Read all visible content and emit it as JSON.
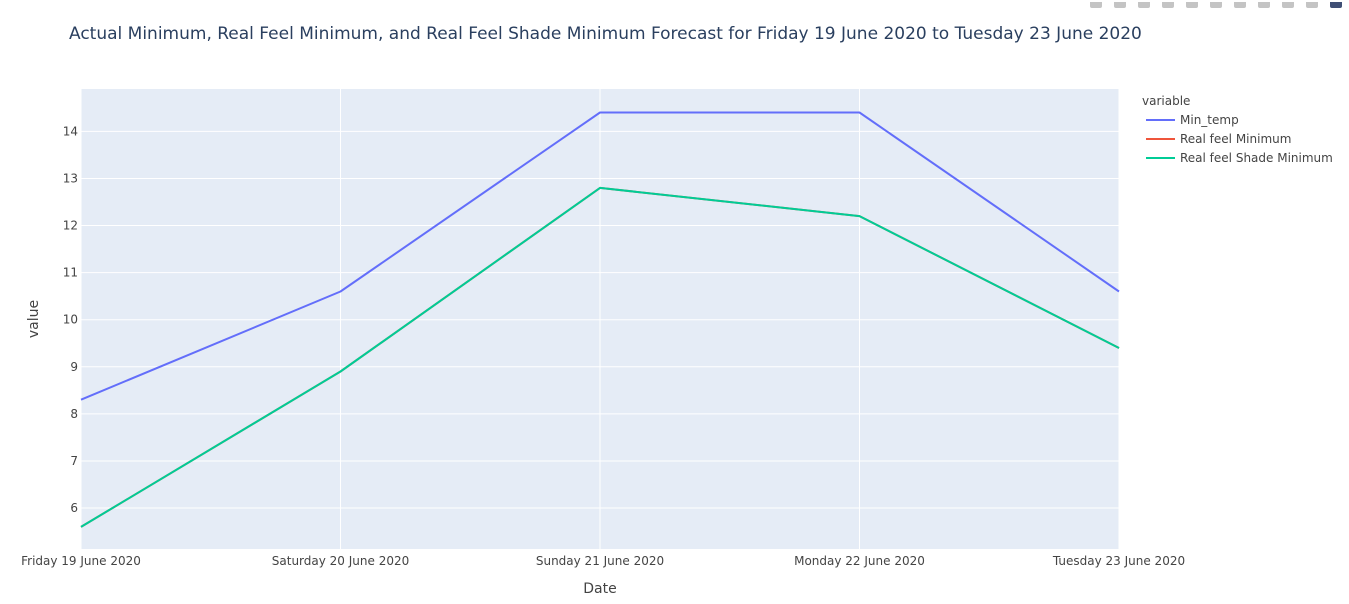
{
  "colors": {
    "plot_bg": "#e5ecf6",
    "grid": "#ffffff",
    "text": "#444444",
    "title": "#2a3f5f",
    "modebar_icon": "#c4c4c4",
    "modebar_logo": "#3f4f75"
  },
  "modebar": {
    "icons": [
      "camera-icon",
      "zoom-icon",
      "pan-icon",
      "zoom-in-icon",
      "zoom-out-icon",
      "autoscale-icon",
      "reset-axes-icon",
      "spike-lines-icon",
      "hover-closest-icon",
      "hover-compare-icon",
      "plotly-logo-icon"
    ]
  },
  "chart_data": {
    "type": "line",
    "title": "Actual Minimum, Real Feel Minimum, and Real Feel Shade Minimum Forecast for Friday 19 June 2020 to Tuesday 23 June 2020",
    "xlabel": "Date",
    "ylabel": "value",
    "categories": [
      "Friday 19 June 2020",
      "Saturday 20 June 2020",
      "Sunday 21 June 2020",
      "Monday 22 June 2020",
      "Tuesday 23 June 2020"
    ],
    "y_ticks": [
      6,
      7,
      8,
      9,
      10,
      11,
      12,
      13,
      14
    ],
    "ylim": [
      5.13,
      14.9
    ],
    "grid": true,
    "legend": {
      "title": "variable",
      "position": "right"
    },
    "series": [
      {
        "name": "Min_temp",
        "color": "#636efa",
        "values": [
          8.3,
          10.6,
          14.4,
          14.4,
          10.6
        ]
      },
      {
        "name": "Real feel Minimum",
        "color": "#ef553b",
        "values": [
          5.6,
          8.9,
          12.8,
          12.2,
          9.4
        ]
      },
      {
        "name": "Real feel Shade Minimum",
        "color": "#00cc96",
        "values": [
          5.6,
          8.9,
          12.8,
          12.2,
          9.4
        ]
      }
    ]
  }
}
